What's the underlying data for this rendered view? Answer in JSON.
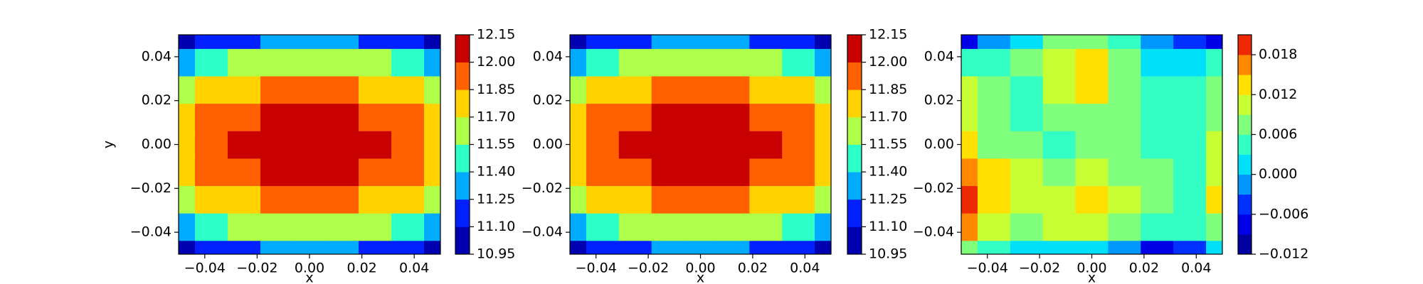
{
  "chart_data": [
    {
      "type": "contour",
      "ylabel": "y",
      "xlabel": "x",
      "x": [
        -0.05,
        -0.0375,
        -0.025,
        -0.0125,
        0,
        0.0125,
        0.025,
        0.0375,
        0.05
      ],
      "y": [
        -0.05,
        -0.0375,
        -0.025,
        -0.0125,
        0,
        0.0125,
        0.025,
        0.0375,
        0.05
      ],
      "z": [
        [
          10.97,
          11.1,
          11.2,
          11.25,
          11.27,
          11.25,
          11.2,
          11.1,
          10.97
        ],
        [
          11.34,
          11.47,
          11.57,
          11.62,
          11.64,
          11.62,
          11.57,
          11.47,
          11.34
        ],
        [
          11.61,
          11.74,
          11.83,
          11.89,
          11.91,
          11.89,
          11.83,
          11.74,
          11.61
        ],
        [
          11.77,
          11.9,
          11.99,
          12.05,
          12.07,
          12.05,
          11.99,
          11.9,
          11.77
        ],
        [
          11.82,
          11.95,
          12.05,
          12.1,
          12.12,
          12.1,
          12.05,
          11.95,
          11.82
        ],
        [
          11.77,
          11.9,
          11.99,
          12.05,
          12.07,
          12.05,
          11.99,
          11.9,
          11.77
        ],
        [
          11.61,
          11.74,
          11.83,
          11.89,
          11.91,
          11.89,
          11.83,
          11.74,
          11.61
        ],
        [
          11.34,
          11.47,
          11.57,
          11.62,
          11.64,
          11.62,
          11.57,
          11.47,
          11.34
        ],
        [
          10.97,
          11.1,
          11.2,
          11.25,
          11.27,
          11.25,
          11.2,
          11.1,
          10.97
        ]
      ],
      "levels": [
        10.95,
        11.1,
        11.25,
        11.4,
        11.55,
        11.7,
        11.85,
        12.0,
        12.15
      ],
      "colors": [
        "#0000b0",
        "#0020ff",
        "#00aaff",
        "#2cffc8",
        "#adff4a",
        "#ffd200",
        "#ff6000",
        "#c80000"
      ],
      "xlim": [
        -0.05,
        0.05
      ],
      "ylim": [
        -0.05,
        0.05
      ],
      "xticks": [
        {
          "value": -0.04,
          "label": "−0.04"
        },
        {
          "value": -0.02,
          "label": "−0.02"
        },
        {
          "value": 0,
          "label": "0.00"
        },
        0.02,
        0.04
      ],
      "yticks": [
        {
          "value": -0.04,
          "label": "−0.04"
        },
        {
          "value": -0.02,
          "label": "−0.02"
        },
        {
          "value": 0,
          "label": "0.00"
        },
        0.02,
        0.04
      ],
      "colorbar_ticks": [
        10.95,
        {
          "value": 11.1,
          "label": "11.10"
        },
        11.25,
        {
          "value": 11.4,
          "label": "11.40"
        },
        11.55,
        {
          "value": 11.7,
          "label": "11.70"
        },
        11.85,
        {
          "value": 12.0,
          "label": "12.00"
        },
        12.15
      ]
    },
    {
      "type": "contour",
      "xlabel": "x",
      "x": [
        -0.05,
        -0.0375,
        -0.025,
        -0.0125,
        0,
        0.0125,
        0.025,
        0.0375,
        0.05
      ],
      "y": [
        -0.05,
        -0.0375,
        -0.025,
        -0.0125,
        0,
        0.0125,
        0.025,
        0.0375,
        0.05
      ],
      "z": [
        [
          10.97,
          11.1,
          11.2,
          11.25,
          11.27,
          11.25,
          11.2,
          11.1,
          10.97
        ],
        [
          11.34,
          11.47,
          11.57,
          11.62,
          11.64,
          11.62,
          11.57,
          11.47,
          11.34
        ],
        [
          11.61,
          11.74,
          11.83,
          11.89,
          11.91,
          11.89,
          11.83,
          11.74,
          11.61
        ],
        [
          11.77,
          11.9,
          11.99,
          12.05,
          12.07,
          12.05,
          11.99,
          11.9,
          11.77
        ],
        [
          11.82,
          11.95,
          12.05,
          12.1,
          12.12,
          12.1,
          12.05,
          11.95,
          11.82
        ],
        [
          11.77,
          11.9,
          11.99,
          12.05,
          12.07,
          12.05,
          11.99,
          11.9,
          11.77
        ],
        [
          11.61,
          11.74,
          11.83,
          11.89,
          11.91,
          11.89,
          11.83,
          11.74,
          11.61
        ],
        [
          11.34,
          11.47,
          11.57,
          11.62,
          11.64,
          11.62,
          11.57,
          11.47,
          11.34
        ],
        [
          10.97,
          11.1,
          11.2,
          11.25,
          11.27,
          11.25,
          11.2,
          11.1,
          10.97
        ]
      ],
      "levels": [
        10.95,
        11.1,
        11.25,
        11.4,
        11.55,
        11.7,
        11.85,
        12.0,
        12.15
      ],
      "colors": [
        "#0000b0",
        "#0020ff",
        "#00aaff",
        "#2cffc8",
        "#adff4a",
        "#ffd200",
        "#ff6000",
        "#c80000"
      ],
      "xlim": [
        -0.05,
        0.05
      ],
      "ylim": [
        -0.05,
        0.05
      ],
      "xticks": [
        {
          "value": -0.04,
          "label": "−0.04"
        },
        {
          "value": -0.02,
          "label": "−0.02"
        },
        {
          "value": 0,
          "label": "0.00"
        },
        0.02,
        0.04
      ],
      "yticks": [
        {
          "value": -0.04,
          "label": "−0.04"
        },
        {
          "value": -0.02,
          "label": "−0.02"
        },
        {
          "value": 0,
          "label": "0.00"
        },
        0.02,
        0.04
      ],
      "colorbar_ticks": [
        10.95,
        {
          "value": 11.1,
          "label": "11.10"
        },
        11.25,
        {
          "value": 11.4,
          "label": "11.40"
        },
        11.55,
        {
          "value": 11.7,
          "label": "11.70"
        },
        11.85,
        {
          "value": 12.0,
          "label": "12.00"
        },
        12.15
      ]
    },
    {
      "type": "contour",
      "xlabel": "x",
      "x": [
        -0.05,
        -0.0375,
        -0.025,
        -0.0125,
        0,
        0.0125,
        0.025,
        0.0375,
        0.05
      ],
      "y": [
        -0.05,
        -0.0375,
        -0.025,
        -0.0125,
        0,
        0.0125,
        0.025,
        0.0375,
        0.05
      ],
      "z": [
        [
          0.006,
          0.004,
          0.002,
          0.001,
          0.0,
          -0.003,
          -0.007,
          -0.004,
          0.001
        ],
        [
          0.015,
          0.01,
          0.008,
          0.009,
          0.01,
          0.008,
          0.005,
          0.003,
          0.006
        ],
        [
          0.02,
          0.013,
          0.01,
          0.011,
          0.014,
          0.011,
          0.007,
          0.004,
          0.012
        ],
        [
          0.017,
          0.012,
          0.009,
          0.008,
          0.009,
          0.008,
          0.006,
          0.005,
          0.01
        ],
        [
          0.012,
          0.008,
          0.006,
          0.005,
          0.008,
          0.007,
          0.004,
          0.004,
          0.009
        ],
        [
          0.01,
          0.006,
          0.004,
          0.008,
          0.008,
          0.006,
          0.003,
          0.003,
          0.008
        ],
        [
          0.009,
          0.006,
          0.005,
          0.009,
          0.012,
          0.007,
          0.003,
          0.003,
          0.007
        ],
        [
          0.004,
          0.005,
          0.007,
          0.01,
          0.013,
          0.006,
          0.001,
          0.002,
          0.004
        ],
        [
          -0.008,
          -0.003,
          0.002,
          0.006,
          0.006,
          0.004,
          -0.002,
          -0.006,
          -0.009
        ]
      ],
      "levels": [
        -0.012,
        -0.009,
        -0.006,
        -0.003,
        0.0,
        0.003,
        0.006,
        0.009,
        0.012,
        0.015,
        0.018,
        0.021
      ],
      "colors": [
        "#0000a0",
        "#0000e8",
        "#0030ff",
        "#0098ff",
        "#00e0fa",
        "#33ffc4",
        "#80ff7c",
        "#c8ff34",
        "#ffe000",
        "#ff8800",
        "#ee2800"
      ],
      "xlim": [
        -0.05,
        0.05
      ],
      "ylim": [
        -0.05,
        0.05
      ],
      "xticks": [
        {
          "value": -0.04,
          "label": "−0.04"
        },
        {
          "value": -0.02,
          "label": "−0.02"
        },
        {
          "value": 0,
          "label": "0.00"
        },
        0.02,
        0.04
      ],
      "yticks": [
        {
          "value": -0.04,
          "label": "−0.04"
        },
        {
          "value": -0.02,
          "label": "−0.02"
        },
        {
          "value": 0,
          "label": "0.00"
        },
        0.02,
        0.04
      ],
      "colorbar_ticks": [
        {
          "value": -0.012,
          "label": "−0.012"
        },
        {
          "value": -0.006,
          "label": "−0.006"
        },
        {
          "value": 0,
          "label": "0.000"
        },
        0.006,
        0.012,
        0.018
      ]
    }
  ]
}
